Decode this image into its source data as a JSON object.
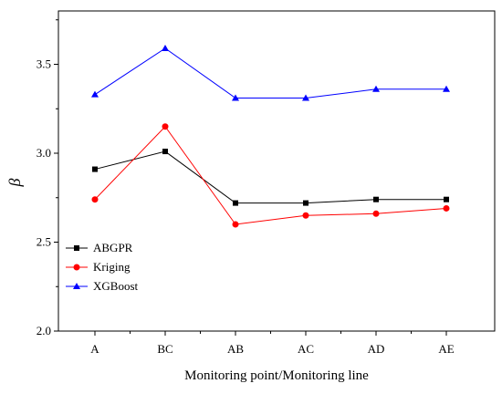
{
  "chart_data": {
    "type": "line",
    "title": "",
    "xlabel": "Monitoring point/Monitoring line",
    "ylabel": "β",
    "categories": [
      "A",
      "BC",
      "AB",
      "AC",
      "AD",
      "AE"
    ],
    "ylim": [
      2.0,
      3.8
    ],
    "yticks": [
      "2.0",
      "2.5",
      "3.0",
      "3.5"
    ],
    "grid": false,
    "legend_position": "bottom-left",
    "series": [
      {
        "name": "ABGPR",
        "color": "#000000",
        "marker": "square",
        "values": [
          2.91,
          3.01,
          2.72,
          2.72,
          2.74,
          2.74
        ]
      },
      {
        "name": "Kriging",
        "color": "#ff0000",
        "marker": "circle",
        "values": [
          2.74,
          3.15,
          2.6,
          2.65,
          2.66,
          2.69
        ]
      },
      {
        "name": "XGBoost",
        "color": "#0000ff",
        "marker": "triangle",
        "values": [
          3.33,
          3.59,
          3.31,
          3.31,
          3.36,
          3.36
        ]
      }
    ]
  }
}
